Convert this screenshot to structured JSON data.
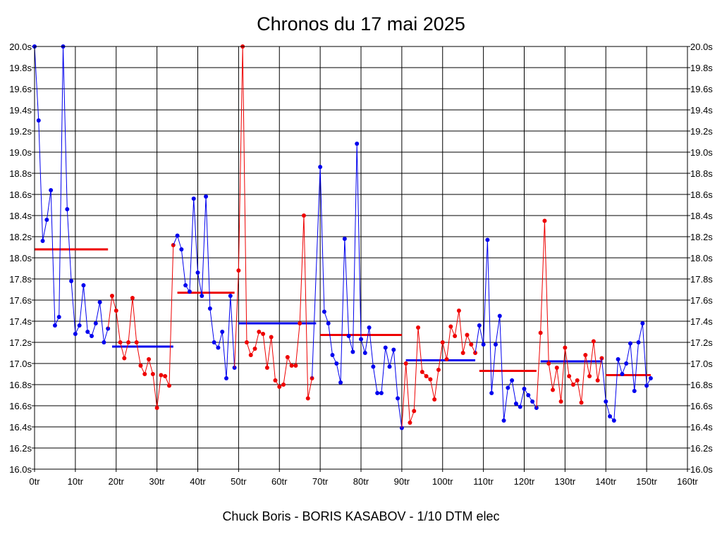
{
  "chart_data": {
    "type": "line",
    "title": "Chronos du 17 mai 2025",
    "footer": "Chuck Boris - BORIS KASABOV - 1/10 DTM elec",
    "xlim": [
      0,
      160
    ],
    "ylim": [
      16.0,
      20.0
    ],
    "x_ticks": [
      {
        "value": 0,
        "label": "0tr"
      },
      {
        "value": 10,
        "label": "10tr"
      },
      {
        "value": 20,
        "label": "20tr"
      },
      {
        "value": 30,
        "label": "30tr"
      },
      {
        "value": 40,
        "label": "40tr"
      },
      {
        "value": 50,
        "label": "50tr"
      },
      {
        "value": 60,
        "label": "60tr"
      },
      {
        "value": 70,
        "label": "70tr"
      },
      {
        "value": 80,
        "label": "80tr"
      },
      {
        "value": 90,
        "label": "90tr"
      },
      {
        "value": 100,
        "label": "100tr"
      },
      {
        "value": 110,
        "label": "110tr"
      },
      {
        "value": 120,
        "label": "120tr"
      },
      {
        "value": 130,
        "label": "130tr"
      },
      {
        "value": 140,
        "label": "140tr"
      },
      {
        "value": 150,
        "label": "150tr"
      },
      {
        "value": 160,
        "label": "160tr"
      }
    ],
    "y_ticks": [
      {
        "value": 20.0,
        "label": "20.0s"
      },
      {
        "value": 19.8,
        "label": "19.8s"
      },
      {
        "value": 19.6,
        "label": "19.6s"
      },
      {
        "value": 19.4,
        "label": "19.4s"
      },
      {
        "value": 19.2,
        "label": "19.2s"
      },
      {
        "value": 19.0,
        "label": "19.0s"
      },
      {
        "value": 18.8,
        "label": "18.8s"
      },
      {
        "value": 18.6,
        "label": "18.6s"
      },
      {
        "value": 18.4,
        "label": "18.4s"
      },
      {
        "value": 18.2,
        "label": "18.2s"
      },
      {
        "value": 18.0,
        "label": "18.0s"
      },
      {
        "value": 17.8,
        "label": "17.8s"
      },
      {
        "value": 17.6,
        "label": "17.6s"
      },
      {
        "value": 17.4,
        "label": "17.4s"
      },
      {
        "value": 17.2,
        "label": "17.2s"
      },
      {
        "value": 17.0,
        "label": "17.0s"
      },
      {
        "value": 16.8,
        "label": "16.8s"
      },
      {
        "value": 16.6,
        "label": "16.6s"
      },
      {
        "value": 16.4,
        "label": "16.4s"
      },
      {
        "value": 16.2,
        "label": "16.2s"
      },
      {
        "value": 16.0,
        "label": "16.0s"
      }
    ],
    "grid": true,
    "series": [
      {
        "color": "#0000ee",
        "avg": 18.08,
        "avg_color": "#ee0000",
        "avg_range": [
          0,
          18
        ],
        "x": [
          0,
          1,
          2,
          3,
          4,
          5,
          6,
          7,
          8,
          9,
          10,
          11,
          12,
          13,
          14,
          15,
          16,
          17,
          18
        ],
        "y": [
          20.0,
          19.3,
          18.16,
          18.36,
          18.64,
          17.36,
          17.44,
          20.0,
          18.46,
          17.78,
          17.28,
          17.36,
          17.74,
          17.3,
          17.26,
          17.38,
          17.58,
          17.2,
          17.33
        ]
      },
      {
        "color": "#ee0000",
        "avg": 17.16,
        "avg_color": "#0000ee",
        "avg_range": [
          19,
          34
        ],
        "x": [
          19,
          20,
          21,
          22,
          23,
          24,
          25,
          26,
          27,
          28,
          29,
          30,
          31,
          32,
          33,
          34
        ],
        "y": [
          17.64,
          17.5,
          17.2,
          17.05,
          17.2,
          17.62,
          17.2,
          16.98,
          16.9,
          17.04,
          16.9,
          16.58,
          16.89,
          16.88,
          16.79,
          18.12
        ]
      },
      {
        "color": "#0000ee",
        "avg": 17.67,
        "avg_color": "#ee0000",
        "avg_range": [
          35,
          49
        ],
        "x": [
          35,
          36,
          37,
          38,
          39,
          40,
          41,
          42,
          43,
          44,
          45,
          46,
          47,
          48,
          49
        ],
        "y": [
          18.21,
          18.08,
          17.74,
          17.68,
          18.56,
          17.86,
          17.64,
          18.58,
          17.52,
          17.2,
          17.15,
          17.3,
          16.86,
          17.64,
          16.96
        ]
      },
      {
        "color": "#ee0000",
        "avg": 17.38,
        "avg_color": "#0000ee",
        "avg_range": [
          50,
          69
        ],
        "x": [
          50,
          51,
          52,
          53,
          54,
          55,
          56,
          57,
          58,
          59,
          60,
          61,
          62,
          63,
          64,
          65,
          66,
          67,
          68
        ],
        "y": [
          17.88,
          20.0,
          17.2,
          17.08,
          17.14,
          17.3,
          17.28,
          16.96,
          17.25,
          16.84,
          16.78,
          16.8,
          17.06,
          16.98,
          16.98,
          17.38,
          18.4,
          16.67,
          16.86
        ]
      },
      {
        "color": "#0000ee",
        "avg": 17.27,
        "avg_color": "#ee0000",
        "avg_range": [
          70,
          90
        ],
        "x": [
          70,
          71,
          72,
          73,
          74,
          75,
          76,
          77,
          78,
          79,
          80,
          81,
          82,
          83,
          84,
          85,
          86,
          87,
          88,
          89,
          90
        ],
        "y": [
          18.86,
          17.49,
          17.38,
          17.08,
          17.0,
          16.82,
          18.18,
          17.26,
          17.11,
          19.08,
          17.23,
          17.1,
          17.34,
          16.97,
          16.72,
          16.72,
          17.15,
          16.97,
          17.13,
          16.67,
          16.39
        ]
      },
      {
        "color": "#ee0000",
        "avg": 17.03,
        "avg_color": "#0000ee",
        "avg_range": [
          91,
          108
        ],
        "x": [
          91,
          92,
          93,
          94,
          95,
          96,
          97,
          98,
          99,
          100,
          101,
          102,
          103,
          104,
          105,
          106,
          107,
          108
        ],
        "y": [
          17.0,
          16.44,
          16.55,
          17.34,
          16.92,
          16.88,
          16.85,
          16.66,
          16.94,
          17.2,
          17.04,
          17.35,
          17.26,
          17.5,
          17.1,
          17.27,
          17.18,
          17.1
        ]
      },
      {
        "color": "#0000ee",
        "avg": 16.93,
        "avg_color": "#ee0000",
        "avg_range": [
          109,
          123
        ],
        "x": [
          109,
          110,
          111,
          112,
          113,
          114,
          115,
          116,
          117,
          118,
          119,
          120,
          121,
          122,
          123
        ],
        "y": [
          17.36,
          17.18,
          18.17,
          16.72,
          17.18,
          17.45,
          16.46,
          16.77,
          16.84,
          16.62,
          16.59,
          16.76,
          16.7,
          16.64,
          16.58
        ]
      },
      {
        "color": "#ee0000",
        "avg": 17.02,
        "avg_color": "#0000ee",
        "avg_range": [
          124,
          139
        ],
        "x": [
          124,
          125,
          126,
          127,
          128,
          129,
          130,
          131,
          132,
          133,
          134,
          135,
          136,
          137,
          138,
          139
        ],
        "y": [
          17.29,
          18.35,
          17.0,
          16.75,
          16.96,
          16.64,
          17.15,
          16.88,
          16.8,
          16.84,
          16.63,
          17.08,
          16.88,
          17.21,
          16.84,
          17.05
        ]
      },
      {
        "color": "#0000ee",
        "avg": 16.89,
        "avg_color": "#ee0000",
        "avg_range": [
          140,
          151
        ],
        "x": [
          140,
          141,
          142,
          143,
          144,
          145,
          146,
          147,
          148,
          149,
          150,
          151
        ],
        "y": [
          16.64,
          16.5,
          16.46,
          17.04,
          16.9,
          17.0,
          17.19,
          16.74,
          17.2,
          17.38,
          16.79,
          16.86
        ]
      }
    ]
  }
}
